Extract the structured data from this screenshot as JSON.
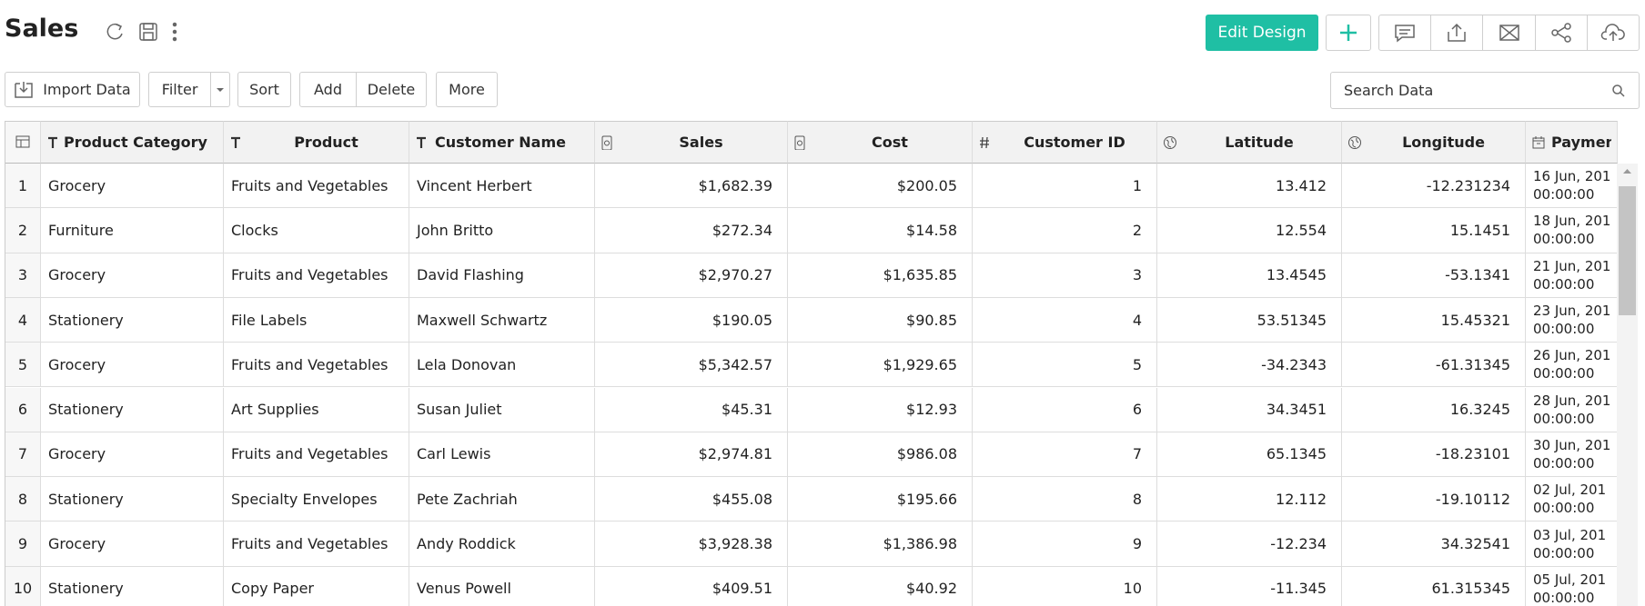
{
  "header": {
    "title": "Sales",
    "edit_button": "Edit Design"
  },
  "toolbar": {
    "import": "Import Data",
    "filter": "Filter",
    "sort": "Sort",
    "add": "Add",
    "delete": "Delete",
    "more": "More",
    "search_placeholder": "Search Data"
  },
  "table": {
    "columns": [
      "Product Category",
      "Product",
      "Customer Name",
      "Sales",
      "Cost",
      "Customer ID",
      "Latitude",
      "Longitude",
      "Paymen"
    ],
    "rows": [
      [
        "1",
        "Grocery",
        "Fruits and Vegetables",
        "Vincent Herbert",
        "$1,682.39",
        "$200.05",
        "1",
        "13.412",
        "-12.231234",
        "16 Jun, 201",
        "00:00:00"
      ],
      [
        "2",
        "Furniture",
        "Clocks",
        "John Britto",
        "$272.34",
        "$14.58",
        "2",
        "12.554",
        "15.1451",
        "18 Jun, 201",
        "00:00:00"
      ],
      [
        "3",
        "Grocery",
        "Fruits and Vegetables",
        "David Flashing",
        "$2,970.27",
        "$1,635.85",
        "3",
        "13.4545",
        "-53.1341",
        "21 Jun, 201",
        "00:00:00"
      ],
      [
        "4",
        "Stationery",
        "File Labels",
        "Maxwell Schwartz",
        "$190.05",
        "$90.85",
        "4",
        "53.51345",
        "15.45321",
        "23 Jun, 201",
        "00:00:00"
      ],
      [
        "5",
        "Grocery",
        "Fruits and Vegetables",
        "Lela Donovan",
        "$5,342.57",
        "$1,929.65",
        "5",
        "-34.2343",
        "-61.31345",
        "26 Jun, 201",
        "00:00:00"
      ],
      [
        "6",
        "Stationery",
        "Art Supplies",
        "Susan Juliet",
        "$45.31",
        "$12.93",
        "6",
        "34.3451",
        "16.3245",
        "28 Jun, 201",
        "00:00:00"
      ],
      [
        "7",
        "Grocery",
        "Fruits and Vegetables",
        "Carl Lewis",
        "$2,974.81",
        "$986.08",
        "7",
        "65.1345",
        "-18.23101",
        "30 Jun, 201",
        "00:00:00"
      ],
      [
        "8",
        "Stationery",
        "Specialty Envelopes",
        "Pete Zachriah",
        "$455.08",
        "$195.66",
        "8",
        "12.112",
        "-19.10112",
        "02 Jul, 201",
        "00:00:00"
      ],
      [
        "9",
        "Grocery",
        "Fruits and Vegetables",
        "Andy Roddick",
        "$3,928.38",
        "$1,386.98",
        "9",
        "-12.234",
        "34.32541",
        "03 Jul, 201",
        "00:00:00"
      ],
      [
        "10",
        "Stationery",
        "Copy Paper",
        "Venus Powell",
        "$409.51",
        "$40.92",
        "10",
        "-11.345",
        "61.315345",
        "05 Jul, 201",
        "00:00:00"
      ]
    ]
  }
}
